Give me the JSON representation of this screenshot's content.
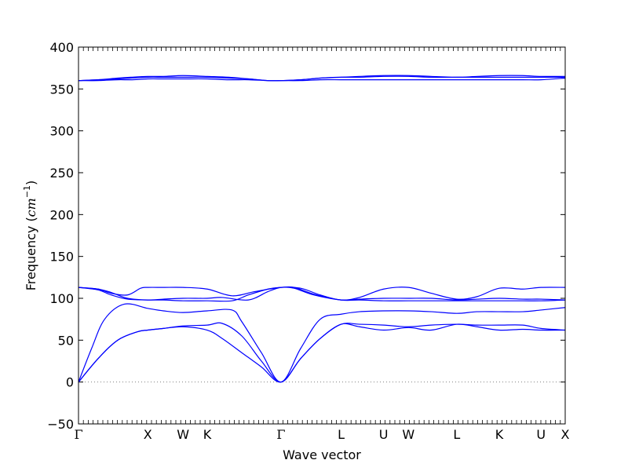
{
  "chart_data": {
    "type": "line",
    "xlabel": "Wave vector",
    "ylabel_text": "Frequency (",
    "ylabel_unit": "cm",
    "ylabel_exp": "−1",
    "ylabel_close": ")",
    "ylim": [
      -50,
      400
    ],
    "yticks": [
      -50,
      0,
      50,
      100,
      150,
      200,
      250,
      300,
      350,
      400
    ],
    "ytick_labels": [
      "−50",
      "0",
      "50",
      "100",
      "150",
      "200",
      "250",
      "300",
      "350",
      "400"
    ],
    "xlim": [
      0,
      7.45
    ],
    "xticks": [
      {
        "x": 0.0,
        "label": "Γ"
      },
      {
        "x": 1.06,
        "label": "X"
      },
      {
        "x": 1.6,
        "label": "W"
      },
      {
        "x": 1.97,
        "label": "K"
      },
      {
        "x": 3.1,
        "label": "Γ"
      },
      {
        "x": 4.02,
        "label": "L"
      },
      {
        "x": 4.67,
        "label": "U"
      },
      {
        "x": 5.05,
        "label": "W"
      },
      {
        "x": 5.79,
        "label": "L"
      },
      {
        "x": 6.44,
        "label": "K"
      },
      {
        "x": 7.08,
        "label": "U"
      },
      {
        "x": 7.45,
        "label": "X"
      }
    ],
    "zero_line": {
      "y": 0,
      "style": "dotted",
      "color": "#808080"
    },
    "line_color": "#0000ff",
    "grid": false,
    "series": [
      {
        "x": [
          0,
          0.3,
          0.6,
          0.9,
          1.06,
          1.3,
          1.6,
          1.97,
          2.2,
          2.5,
          2.8,
          3.1,
          3.4,
          3.7,
          4.02,
          4.3,
          4.67,
          5.05,
          5.4,
          5.79,
          6.1,
          6.44,
          6.8,
          7.08,
          7.45
        ],
        "values": [
          0,
          28,
          50,
          60,
          62,
          64,
          66,
          62,
          52,
          35,
          18,
          0,
          28,
          52,
          69,
          69,
          68,
          66,
          68,
          69,
          68,
          68,
          68,
          64,
          62
        ]
      },
      {
        "x": [
          0,
          0.3,
          0.6,
          0.9,
          1.06,
          1.3,
          1.6,
          1.97,
          2.2,
          2.5,
          2.8,
          3.1,
          3.4,
          3.7,
          4.02,
          4.3,
          4.67,
          5.05,
          5.4,
          5.79,
          6.1,
          6.44,
          6.8,
          7.08,
          7.45
        ],
        "values": [
          0,
          28,
          50,
          60,
          62,
          64,
          67,
          68,
          70,
          55,
          25,
          0,
          28,
          52,
          69,
          66,
          62,
          65,
          62,
          69,
          66,
          62,
          63,
          62,
          62
        ]
      },
      {
        "x": [
          0,
          0.2,
          0.4,
          0.7,
          1.06,
          1.3,
          1.6,
          1.97,
          2.35,
          2.5,
          2.8,
          3.1,
          3.4,
          3.7,
          4.02,
          4.3,
          4.67,
          5.05,
          5.4,
          5.79,
          6.1,
          6.44,
          6.8,
          7.08,
          7.45
        ],
        "values": [
          0,
          40,
          75,
          93,
          88,
          85,
          83,
          85,
          86,
          72,
          35,
          0,
          40,
          75,
          81,
          84,
          85,
          85,
          84,
          82,
          84,
          84,
          84,
          86,
          89
        ]
      },
      {
        "x": [
          0,
          0.3,
          0.5,
          0.75,
          1.06,
          1.3,
          1.6,
          1.97,
          2.35,
          2.6,
          2.9,
          3.1,
          3.3,
          3.6,
          4.02,
          4.3,
          4.67,
          5.05,
          5.4,
          5.79,
          6.1,
          6.44,
          6.8,
          7.08,
          7.45
        ],
        "values": [
          113,
          110,
          104,
          99,
          98,
          98,
          97,
          97,
          97,
          104,
          111,
          113,
          113,
          105,
          98,
          98,
          97,
          97,
          97,
          97,
          97,
          97,
          97,
          97,
          98
        ]
      },
      {
        "x": [
          0,
          0.3,
          0.5,
          0.75,
          1.06,
          1.3,
          1.6,
          1.97,
          2.2,
          2.6,
          2.9,
          3.1,
          3.3,
          3.6,
          4.02,
          4.3,
          4.67,
          5.05,
          5.4,
          5.79,
          6.1,
          6.44,
          6.8,
          7.08,
          7.45
        ],
        "values": [
          113,
          111,
          107,
          100,
          98,
          99,
          100,
          100,
          101,
          98,
          108,
          113,
          112,
          104,
          98,
          99,
          100,
          100,
          100,
          98,
          99,
          100,
          99,
          99,
          98
        ]
      },
      {
        "x": [
          0,
          0.3,
          0.5,
          0.75,
          0.95,
          1.06,
          1.3,
          1.6,
          1.97,
          2.35,
          2.7,
          3.1,
          3.4,
          3.7,
          4.02,
          4.3,
          4.67,
          5.05,
          5.4,
          5.79,
          6.1,
          6.44,
          6.8,
          7.08,
          7.45
        ],
        "values": [
          113,
          111,
          106,
          104,
          112,
          113,
          113,
          113,
          111,
          103,
          108,
          113,
          112,
          104,
          98,
          101,
          111,
          113,
          106,
          99,
          102,
          112,
          111,
          113,
          113
        ]
      },
      {
        "x": [
          0,
          0.3,
          0.6,
          0.8,
          1.06,
          1.3,
          1.6,
          1.97,
          2.3,
          2.6,
          2.9,
          3.1,
          3.4,
          3.7,
          4.02,
          4.3,
          4.67,
          5.05,
          5.4,
          5.79,
          6.1,
          6.44,
          6.8,
          7.08,
          7.45
        ],
        "values": [
          360,
          360,
          361,
          361,
          362,
          362,
          362,
          362,
          361,
          361,
          360,
          360,
          360,
          361,
          361,
          361,
          361,
          361,
          361,
          361,
          361,
          361,
          361,
          361,
          363
        ]
      },
      {
        "x": [
          0,
          0.3,
          0.6,
          0.8,
          1.06,
          1.3,
          1.6,
          1.97,
          2.3,
          2.6,
          2.9,
          3.1,
          3.4,
          3.7,
          4.02,
          4.3,
          4.67,
          5.05,
          5.4,
          5.79,
          6.1,
          6.44,
          6.8,
          7.08,
          7.45
        ],
        "values": [
          360,
          361,
          362,
          363,
          364,
          364,
          364,
          364,
          363,
          362,
          360,
          360,
          361,
          363,
          364,
          364,
          365,
          365,
          364,
          364,
          364,
          364,
          364,
          364,
          364
        ]
      },
      {
        "x": [
          0,
          0.3,
          0.6,
          0.8,
          1.06,
          1.3,
          1.6,
          1.97,
          2.3,
          2.6,
          2.9,
          3.1,
          3.4,
          3.7,
          4.02,
          4.3,
          4.67,
          5.05,
          5.4,
          5.79,
          6.1,
          6.44,
          6.8,
          7.08,
          7.45
        ],
        "values": [
          360,
          361,
          363,
          364,
          365,
          365,
          366,
          365,
          364,
          362,
          360,
          360,
          361,
          363,
          364,
          365,
          366,
          366,
          365,
          364,
          365,
          366,
          366,
          365,
          365
        ]
      }
    ]
  }
}
